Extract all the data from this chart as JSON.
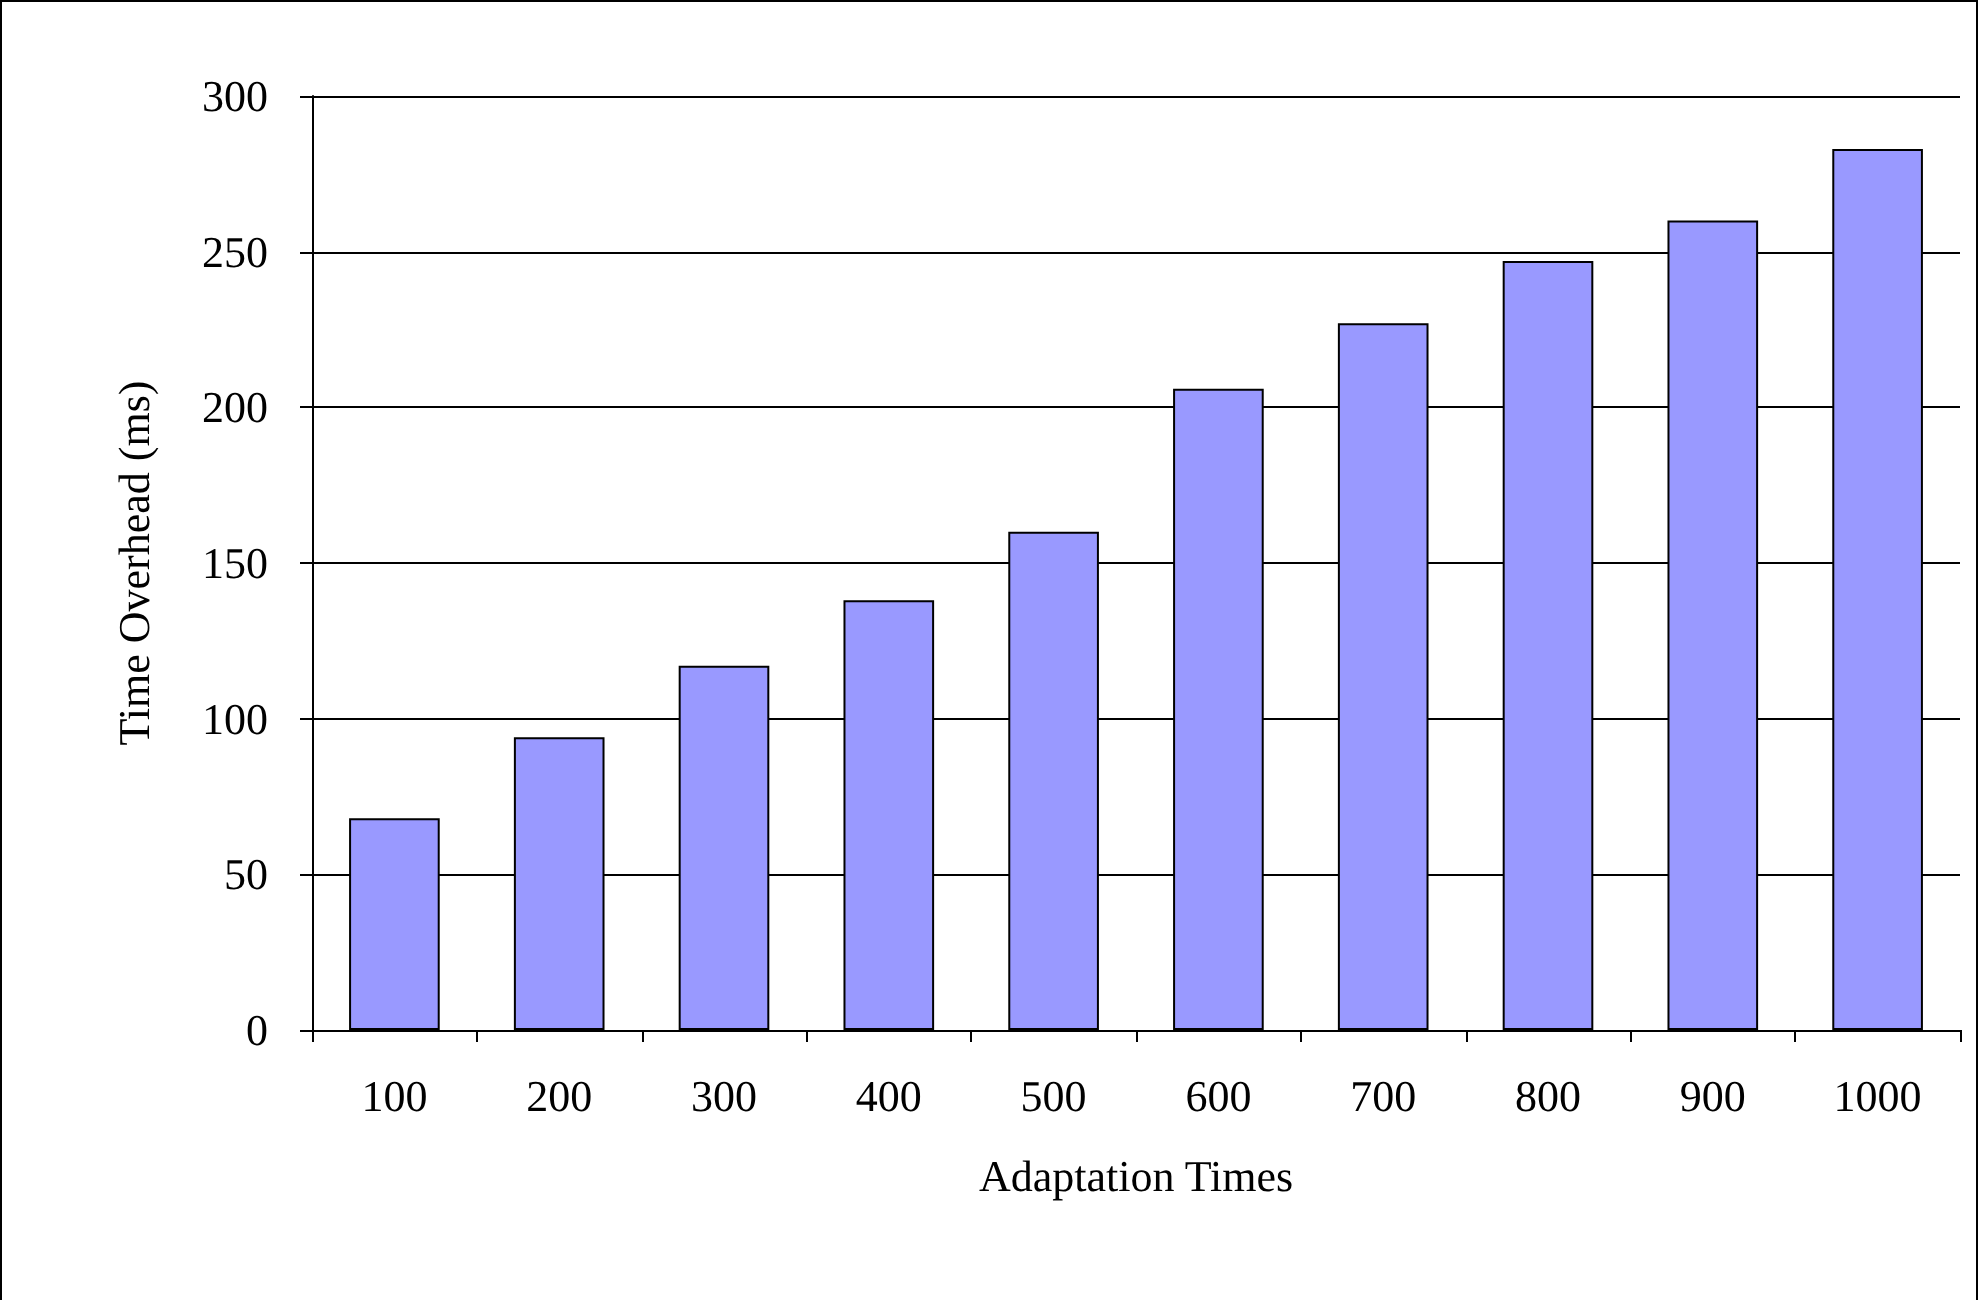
{
  "chart_data": {
    "type": "bar",
    "xlabel": "Adaptation Times",
    "ylabel": "Time Overhead (ms)",
    "categories": [
      "100",
      "200",
      "300",
      "400",
      "500",
      "600",
      "700",
      "800",
      "900",
      "1000"
    ],
    "values": [
      68,
      94,
      117,
      138,
      160,
      206,
      227,
      247,
      260,
      283
    ],
    "color": "#9999ff",
    "ylim": [
      0,
      300
    ],
    "yticks": [
      0,
      50,
      100,
      150,
      200,
      250,
      300
    ],
    "grid": "y"
  }
}
